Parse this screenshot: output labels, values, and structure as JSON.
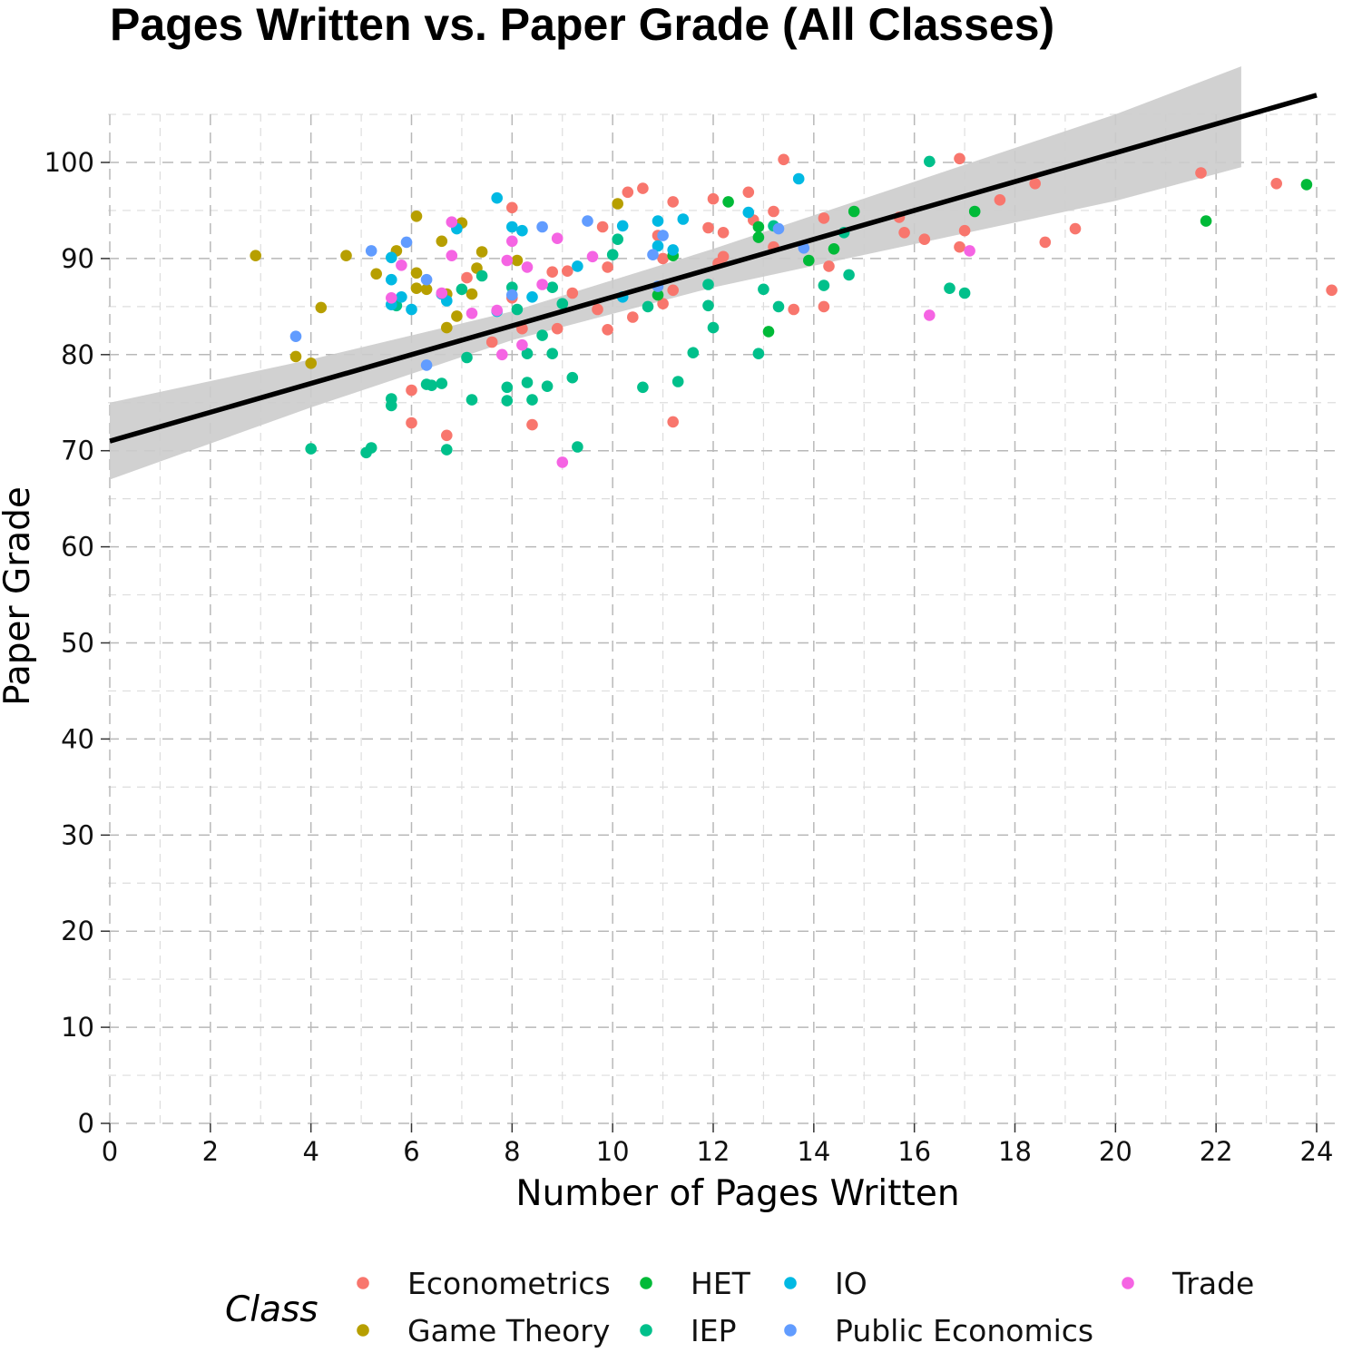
{
  "chart_data": {
    "type": "scatter",
    "title": "Pages Written vs. Paper Grade (All Classes)",
    "xlabel": "Number of Pages Written",
    "ylabel": "Paper Grade",
    "xlim": [
      0,
      24.5
    ],
    "ylim": [
      0,
      105
    ],
    "xticks": [
      0,
      2,
      4,
      6,
      8,
      10,
      12,
      14,
      16,
      18,
      20,
      22,
      24
    ],
    "yticks": [
      0,
      10,
      20,
      30,
      40,
      50,
      60,
      70,
      80,
      90,
      100
    ],
    "xtick_labels": [
      "0",
      "2",
      "4",
      "6",
      "8",
      "10",
      "12",
      "14",
      "16",
      "18",
      "20",
      "22",
      "24"
    ],
    "ytick_labels": [
      "0",
      "10",
      "20",
      "30",
      "40",
      "50",
      "60",
      "70",
      "80",
      "90",
      "100"
    ],
    "grid": true,
    "legend": {
      "title": "Class",
      "position": "bottom"
    },
    "regression": {
      "x": [
        0,
        24
      ],
      "y": [
        71,
        107
      ],
      "ci_x": [
        0,
        4,
        8,
        12,
        16,
        20,
        22.5
      ],
      "ci_lower": [
        67,
        74.5,
        81.5,
        87,
        91.5,
        96,
        99.5
      ],
      "ci_upper": [
        75,
        79.5,
        84.5,
        91,
        98,
        105,
        110
      ],
      "color": "#000000",
      "ci_color": "#cccccc"
    },
    "series": [
      {
        "name": "Econometrics",
        "color": "#F8766D",
        "points": [
          [
            6.0,
            76.3
          ],
          [
            6.0,
            72.9
          ],
          [
            6.7,
            71.6
          ],
          [
            7.1,
            88.0
          ],
          [
            7.6,
            81.3
          ],
          [
            8.0,
            95.3
          ],
          [
            8.0,
            85.9
          ],
          [
            8.2,
            82.7
          ],
          [
            8.4,
            72.7
          ],
          [
            8.8,
            88.6
          ],
          [
            8.9,
            82.7
          ],
          [
            9.1,
            88.7
          ],
          [
            9.2,
            86.4
          ],
          [
            9.7,
            84.7
          ],
          [
            9.8,
            93.3
          ],
          [
            9.9,
            89.1
          ],
          [
            9.9,
            82.6
          ],
          [
            10.3,
            96.9
          ],
          [
            10.4,
            83.9
          ],
          [
            10.6,
            97.3
          ],
          [
            10.9,
            92.4
          ],
          [
            11.0,
            90.0
          ],
          [
            11.0,
            85.3
          ],
          [
            11.2,
            95.9
          ],
          [
            11.2,
            86.7
          ],
          [
            11.2,
            73.0
          ],
          [
            11.9,
            93.2
          ],
          [
            12.0,
            96.2
          ],
          [
            12.1,
            89.5
          ],
          [
            12.2,
            92.7
          ],
          [
            12.2,
            90.2
          ],
          [
            12.7,
            96.9
          ],
          [
            12.8,
            94.0
          ],
          [
            13.2,
            94.9
          ],
          [
            13.2,
            91.2
          ],
          [
            13.4,
            100.3
          ],
          [
            13.6,
            84.7
          ],
          [
            14.2,
            94.2
          ],
          [
            14.2,
            85.0
          ],
          [
            14.3,
            89.2
          ],
          [
            15.7,
            94.3
          ],
          [
            15.8,
            92.7
          ],
          [
            16.2,
            92.0
          ],
          [
            16.9,
            100.4
          ],
          [
            16.9,
            91.2
          ],
          [
            17.0,
            92.9
          ],
          [
            17.7,
            96.1
          ],
          [
            18.4,
            97.8
          ],
          [
            18.6,
            91.7
          ],
          [
            19.2,
            93.1
          ],
          [
            21.7,
            98.9
          ],
          [
            23.2,
            97.8
          ],
          [
            24.3,
            86.7
          ]
        ]
      },
      {
        "name": "Game Theory",
        "color": "#B79F00",
        "points": [
          [
            2.9,
            90.3
          ],
          [
            3.7,
            79.8
          ],
          [
            4.0,
            79.1
          ],
          [
            4.2,
            84.9
          ],
          [
            4.7,
            90.3
          ],
          [
            5.3,
            88.4
          ],
          [
            5.7,
            90.8
          ],
          [
            6.1,
            94.4
          ],
          [
            6.1,
            88.5
          ],
          [
            6.1,
            86.9
          ],
          [
            6.3,
            86.8
          ],
          [
            6.6,
            91.8
          ],
          [
            6.7,
            82.8
          ],
          [
            6.7,
            86.3
          ],
          [
            6.9,
            84.0
          ],
          [
            7.0,
            93.7
          ],
          [
            7.2,
            86.3
          ],
          [
            7.3,
            89.0
          ],
          [
            7.4,
            90.7
          ],
          [
            8.1,
            89.8
          ],
          [
            10.1,
            95.7
          ]
        ]
      },
      {
        "name": "HET",
        "color": "#00BA38",
        "points": [
          [
            10.9,
            86.2
          ],
          [
            11.2,
            90.3
          ],
          [
            12.3,
            95.9
          ],
          [
            12.9,
            92.2
          ],
          [
            12.9,
            93.3
          ],
          [
            13.1,
            82.4
          ],
          [
            13.9,
            89.8
          ],
          [
            14.4,
            91.0
          ],
          [
            14.8,
            94.9
          ],
          [
            17.2,
            94.9
          ],
          [
            21.8,
            93.9
          ],
          [
            23.8,
            97.7
          ]
        ]
      },
      {
        "name": "IEP",
        "color": "#00C08B",
        "points": [
          [
            4.0,
            70.2
          ],
          [
            5.1,
            69.8
          ],
          [
            5.2,
            70.3
          ],
          [
            5.6,
            75.4
          ],
          [
            5.6,
            74.7
          ],
          [
            5.7,
            85.1
          ],
          [
            6.3,
            76.9
          ],
          [
            6.4,
            76.8
          ],
          [
            6.6,
            77.0
          ],
          [
            6.7,
            70.1
          ],
          [
            7.0,
            86.8
          ],
          [
            7.1,
            79.7
          ],
          [
            7.2,
            75.3
          ],
          [
            7.4,
            88.2
          ],
          [
            7.9,
            76.6
          ],
          [
            7.9,
            75.2
          ],
          [
            8.0,
            87.0
          ],
          [
            8.1,
            84.7
          ],
          [
            8.3,
            80.1
          ],
          [
            8.3,
            77.1
          ],
          [
            8.4,
            75.3
          ],
          [
            8.6,
            82.0
          ],
          [
            8.7,
            76.7
          ],
          [
            8.8,
            87.0
          ],
          [
            8.8,
            80.1
          ],
          [
            9.0,
            85.3
          ],
          [
            9.2,
            77.6
          ],
          [
            9.3,
            70.4
          ],
          [
            10.0,
            90.4
          ],
          [
            10.1,
            92.0
          ],
          [
            10.6,
            76.6
          ],
          [
            10.7,
            85.0
          ],
          [
            11.3,
            77.2
          ],
          [
            11.6,
            80.2
          ],
          [
            11.9,
            87.3
          ],
          [
            11.9,
            85.1
          ],
          [
            12.0,
            82.8
          ],
          [
            12.9,
            80.1
          ],
          [
            13.0,
            86.8
          ],
          [
            13.2,
            93.4
          ],
          [
            13.3,
            85.0
          ],
          [
            14.2,
            87.2
          ],
          [
            14.6,
            92.7
          ],
          [
            14.7,
            88.3
          ],
          [
            16.3,
            100.1
          ],
          [
            16.7,
            86.9
          ],
          [
            17.0,
            86.4
          ]
        ]
      },
      {
        "name": "IO",
        "color": "#00B9E3",
        "points": [
          [
            5.6,
            87.8
          ],
          [
            5.6,
            85.2
          ],
          [
            5.6,
            90.1
          ],
          [
            5.8,
            86.0
          ],
          [
            6.0,
            84.7
          ],
          [
            6.6,
            86.3
          ],
          [
            6.7,
            85.6
          ],
          [
            6.9,
            93.1
          ],
          [
            7.7,
            96.3
          ],
          [
            7.7,
            84.5
          ],
          [
            8.0,
            93.3
          ],
          [
            8.2,
            92.9
          ],
          [
            8.4,
            86.0
          ],
          [
            9.3,
            89.2
          ],
          [
            10.2,
            93.4
          ],
          [
            10.2,
            86.0
          ],
          [
            10.9,
            93.9
          ],
          [
            10.9,
            91.3
          ],
          [
            11.2,
            90.9
          ],
          [
            11.4,
            94.1
          ],
          [
            12.7,
            94.8
          ],
          [
            13.7,
            98.3
          ]
        ]
      },
      {
        "name": "Public Economics",
        "color": "#619CFF",
        "points": [
          [
            3.7,
            81.9
          ],
          [
            5.2,
            90.8
          ],
          [
            5.9,
            91.7
          ],
          [
            6.3,
            87.8
          ],
          [
            6.3,
            78.9
          ],
          [
            8.0,
            86.2
          ],
          [
            8.6,
            93.3
          ],
          [
            9.5,
            93.9
          ],
          [
            10.8,
            90.4
          ],
          [
            10.9,
            87.1
          ],
          [
            11.0,
            92.4
          ],
          [
            13.3,
            93.1
          ],
          [
            13.8,
            91.1
          ]
        ]
      },
      {
        "name": "Trade",
        "color": "#F564E3",
        "points": [
          [
            5.6,
            85.9
          ],
          [
            5.8,
            89.3
          ],
          [
            6.6,
            86.4
          ],
          [
            6.8,
            90.3
          ],
          [
            6.8,
            93.8
          ],
          [
            7.2,
            84.3
          ],
          [
            7.7,
            84.6
          ],
          [
            7.8,
            80.0
          ],
          [
            7.9,
            89.8
          ],
          [
            8.0,
            91.8
          ],
          [
            8.2,
            81.0
          ],
          [
            8.3,
            89.1
          ],
          [
            8.6,
            87.3
          ],
          [
            8.9,
            92.1
          ],
          [
            9.0,
            68.8
          ],
          [
            9.6,
            90.2
          ],
          [
            16.3,
            84.1
          ],
          [
            17.1,
            90.8
          ]
        ]
      }
    ]
  }
}
